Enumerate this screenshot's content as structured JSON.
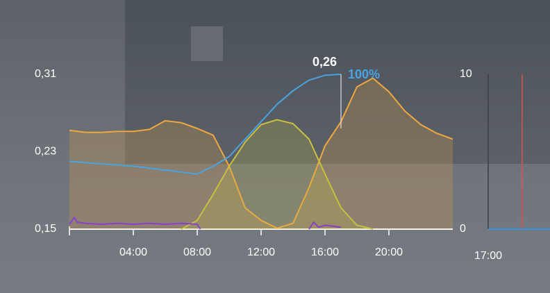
{
  "chart_data": [
    {
      "type": "line",
      "xlim": [
        0,
        24
      ],
      "xticks": [
        {
          "value": 4,
          "label": "04:00"
        },
        {
          "value": 8,
          "label": "08:00"
        },
        {
          "value": 12,
          "label": "12:00"
        },
        {
          "value": 16,
          "label": "16:00"
        },
        {
          "value": 20,
          "label": "20:00"
        }
      ],
      "ylim": [
        0.15,
        0.31
      ],
      "yticks": [
        {
          "value": 0.15,
          "label": "0,15"
        },
        {
          "value": 0.23,
          "label": "0,23"
        },
        {
          "value": 0.31,
          "label": "0,31"
        }
      ],
      "series": [
        {
          "color": "#f0a840",
          "fill": true,
          "x": [
            0,
            1,
            2,
            3,
            4,
            5,
            6,
            7,
            8,
            9,
            10,
            11,
            12,
            13,
            14,
            15,
            16,
            17,
            18,
            19,
            20,
            21,
            22,
            23,
            24
          ],
          "values": [
            0.252,
            0.25,
            0.25,
            0.251,
            0.251,
            0.253,
            0.262,
            0.26,
            0.254,
            0.247,
            0.215,
            0.172,
            0.159,
            0.151,
            0.156,
            0.193,
            0.236,
            0.261,
            0.297,
            0.306,
            0.292,
            0.272,
            0.258,
            0.249,
            0.243
          ]
        },
        {
          "color": "#c8c040",
          "fill": true,
          "x": [
            7,
            8,
            9,
            10,
            11,
            12,
            13,
            14,
            15,
            16,
            17,
            18,
            19
          ],
          "values": [
            0.15,
            0.159,
            0.186,
            0.215,
            0.24,
            0.258,
            0.263,
            0.259,
            0.243,
            0.207,
            0.172,
            0.154,
            0.15
          ]
        },
        {
          "color": "#4aa3df",
          "fill": false,
          "x": [
            0,
            4,
            8,
            9,
            10,
            11,
            12,
            13,
            14,
            15,
            16,
            17
          ],
          "values": [
            0.22,
            0.215,
            0.207,
            0.215,
            0.225,
            0.243,
            0.261,
            0.279,
            0.293,
            0.304,
            0.309,
            0.31
          ]
        },
        {
          "color": "#8a3fd0",
          "fill": false,
          "x": [
            0,
            0.3,
            0.5,
            1,
            2,
            3,
            4,
            5,
            6,
            7,
            8,
            8.2,
            11,
            15,
            15.3,
            15.6,
            16,
            17
          ],
          "values": [
            0.155,
            0.162,
            0.157,
            0.156,
            0.155,
            0.156,
            0.155,
            0.156,
            0.155,
            0.156,
            0.155,
            0.15,
            null,
            0.15,
            0.157,
            0.152,
            0.154,
            0.152
          ]
        }
      ],
      "cursor": {
        "x": 17,
        "labels": [
          {
            "text": "0,26",
            "color": "#ffffff"
          },
          {
            "text": "100%",
            "color": "#4aa3df"
          }
        ]
      }
    },
    {
      "type": "line",
      "xlim": [
        17,
        18
      ],
      "xticks": [
        {
          "value": 17,
          "label": "17:00"
        }
      ],
      "ylim": [
        0,
        10
      ],
      "yticks": [
        0,
        10
      ],
      "series": [
        {
          "color": "#2f95d8",
          "fill": false,
          "x": [
            17,
            18
          ],
          "values": [
            0,
            0
          ]
        }
      ],
      "cursor": {
        "x": 17.55,
        "color": "#d9534f"
      }
    }
  ]
}
